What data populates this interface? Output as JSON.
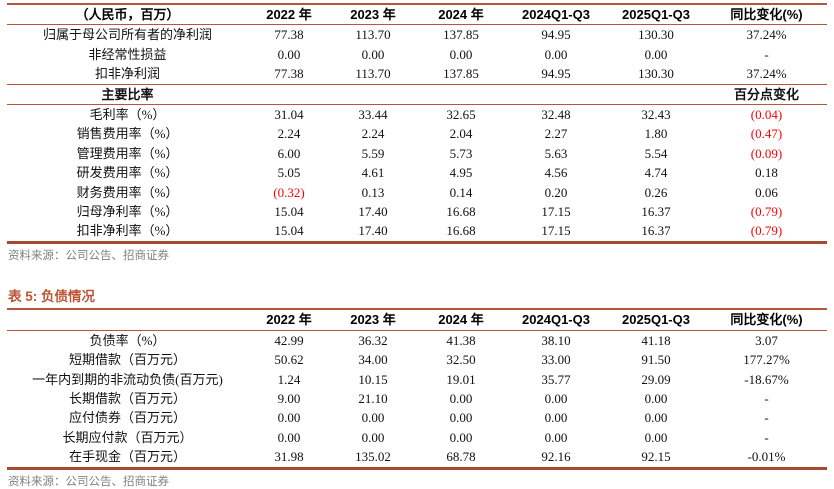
{
  "colors": {
    "rule_line": "#b5573c",
    "table_title": "#bd5434",
    "negative_value": "#ff0000",
    "source_text": "#808080"
  },
  "table1": {
    "headers": [
      "（人民币，百万）",
      "2022 年",
      "2023 年",
      "2024 年",
      "2024Q1-Q3",
      "2025Q1-Q3",
      "同比变化(%)"
    ],
    "rows": [
      {
        "cells": [
          "归属于母公司所有者的净利润",
          "77.38",
          "113.70",
          "137.85",
          "94.95",
          "130.30",
          "37.24%"
        ]
      },
      {
        "cells": [
          "非经常性损益",
          "0.00",
          "0.00",
          "0.00",
          "0.00",
          "0.00",
          "-"
        ]
      },
      {
        "cells": [
          "扣非净利润",
          "77.38",
          "113.70",
          "137.85",
          "94.95",
          "130.30",
          "37.24%"
        ]
      },
      {
        "type": "section",
        "cells": [
          "主要比率",
          "",
          "",
          "",
          "",
          "",
          "百分点变化"
        ]
      },
      {
        "cells": [
          "毛利率（%）",
          "31.04",
          "33.44",
          "32.65",
          "32.48",
          "32.43",
          "(0.04)"
        ]
      },
      {
        "cells": [
          "销售费用率（%）",
          "2.24",
          "2.24",
          "2.04",
          "2.27",
          "1.80",
          "(0.47)"
        ]
      },
      {
        "cells": [
          "管理费用率（%）",
          "6.00",
          "5.59",
          "5.73",
          "5.63",
          "5.54",
          "(0.09)"
        ]
      },
      {
        "cells": [
          "研发费用率（%）",
          "5.05",
          "4.61",
          "4.95",
          "4.56",
          "4.74",
          "0.18"
        ]
      },
      {
        "cells": [
          "财务费用率（%）",
          "(0.32)",
          "0.13",
          "0.14",
          "0.20",
          "0.26",
          "0.06"
        ]
      },
      {
        "cells": [
          "归母净利率（%）",
          "15.04",
          "17.40",
          "16.68",
          "17.15",
          "16.37",
          "(0.79)"
        ]
      },
      {
        "cells": [
          "扣非净利率（%）",
          "15.04",
          "17.40",
          "16.68",
          "17.15",
          "16.37",
          "(0.79)"
        ]
      }
    ],
    "source": "资料来源：公司公告、招商证券"
  },
  "table5": {
    "title": "表 5: 负债情况",
    "headers": [
      "",
      "2022 年",
      "2023 年",
      "2024 年",
      "2024Q1-Q3",
      "2025Q1-Q3",
      "同比变化(%)"
    ],
    "rows": [
      {
        "cells": [
          "负债率（%）",
          "42.99",
          "36.32",
          "41.38",
          "38.10",
          "41.18",
          "3.07"
        ]
      },
      {
        "cells": [
          "短期借款（百万元）",
          "50.62",
          "34.00",
          "32.50",
          "33.00",
          "91.50",
          "177.27%"
        ]
      },
      {
        "cells": [
          "一年内到期的非流动负债(百万元)",
          "1.24",
          "10.15",
          "19.01",
          "35.77",
          "29.09",
          "-18.67%"
        ]
      },
      {
        "cells": [
          "长期借款（百万元）",
          "9.00",
          "21.10",
          "0.00",
          "0.00",
          "0.00",
          "-"
        ]
      },
      {
        "cells": [
          "应付债券（百万元）",
          "0.00",
          "0.00",
          "0.00",
          "0.00",
          "0.00",
          "-"
        ]
      },
      {
        "cells": [
          "长期应付款（百万元）",
          "0.00",
          "0.00",
          "0.00",
          "0.00",
          "0.00",
          "-"
        ]
      },
      {
        "cells": [
          "在手现金（百万元）",
          "31.98",
          "135.02",
          "68.78",
          "92.16",
          "92.15",
          "-0.01%"
        ]
      }
    ],
    "source": "资料来源：公司公告、招商证券"
  }
}
